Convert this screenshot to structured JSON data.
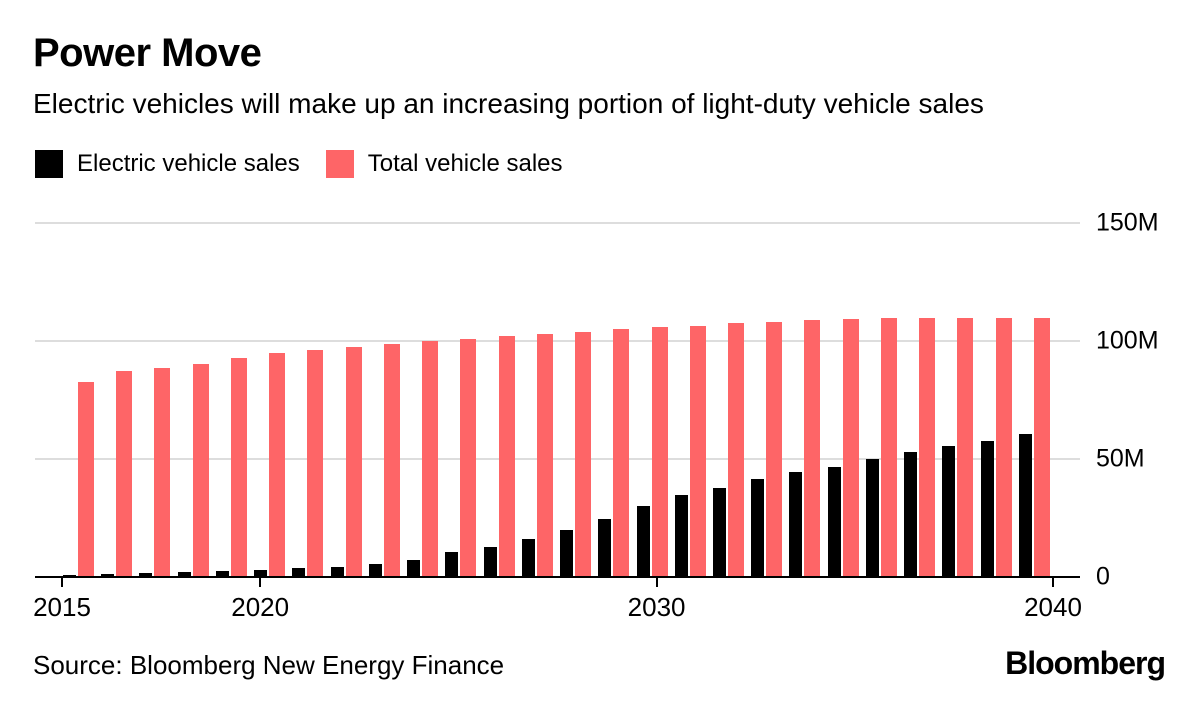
{
  "header": {
    "title": "Power Move",
    "subtitle": "Electric vehicles will make up an increasing portion of light-duty vehicle sales"
  },
  "legend": [
    {
      "label": "Electric vehicle sales",
      "color": "#000000"
    },
    {
      "label": "Total vehicle sales",
      "color": "#fe6567"
    }
  ],
  "footer": {
    "source": "Source: Bloomberg New Energy Finance",
    "logo": "Bloomberg"
  },
  "colors": {
    "ev_bar": "#000000",
    "total_bar": "#fe6567",
    "gridline": "#dddddd",
    "axis": "#000000",
    "background": "#ffffff",
    "text": "#000000"
  },
  "chart_data": {
    "type": "bar",
    "title": "Power Move",
    "subtitle": "Electric vehicles will make up an increasing portion of light-duty vehicle sales",
    "unit": "million vehicles",
    "grid": true,
    "legend_position": "top",
    "ylim": [
      0,
      150
    ],
    "yticks": [
      {
        "value": 0,
        "label": "0"
      },
      {
        "value": 50,
        "label": "50M"
      },
      {
        "value": 100,
        "label": "100M"
      },
      {
        "value": 150,
        "label": "150M"
      }
    ],
    "xticks": [
      2015,
      2020,
      2030,
      2040
    ],
    "categories": [
      2015,
      2016,
      2017,
      2018,
      2019,
      2020,
      2021,
      2022,
      2023,
      2024,
      2025,
      2026,
      2027,
      2028,
      2029,
      2030,
      2031,
      2032,
      2033,
      2034,
      2035,
      2036,
      2037,
      2038,
      2039,
      2040
    ],
    "series": [
      {
        "name": "Electric vehicle sales",
        "color": "#000000",
        "values": [
          0.4,
          0.8,
          1.1,
          1.5,
          2.0,
          2.6,
          3.2,
          4.0,
          5.1,
          6.9,
          10.0,
          12.5,
          15.5,
          19.3,
          24.0,
          29.5,
          34.3,
          37.5,
          41.0,
          44.0,
          46.0,
          49.4,
          52.5,
          55.0,
          57.0,
          60.3
        ]
      },
      {
        "name": "Total vehicle sales",
        "color": "#fe6567",
        "values": [
          82.0,
          86.8,
          88.3,
          90.0,
          92.2,
          94.5,
          95.8,
          97.2,
          98.1,
          99.4,
          100.5,
          101.6,
          102.5,
          103.4,
          104.5,
          105.4,
          106.0,
          107.1,
          107.7,
          108.3,
          108.9,
          109.4,
          109.5,
          109.5,
          109.5,
          109.5
        ]
      }
    ]
  }
}
